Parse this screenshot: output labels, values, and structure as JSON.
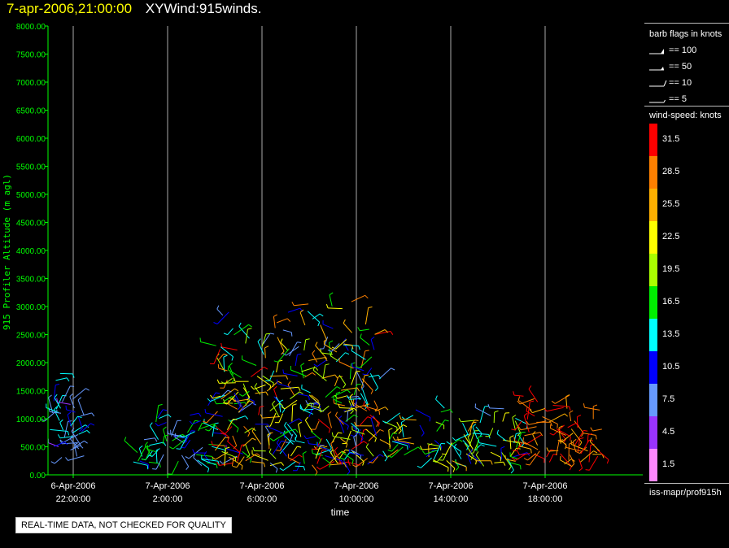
{
  "header": {
    "timestamp": "7-apr-2006,21:00:00",
    "title": "XYWind:915winds."
  },
  "notice": "REAL-TIME DATA, NOT CHECKED FOR QUALITY",
  "legend": {
    "barb_title": "barb flags in knots",
    "barb_flags": [
      {
        "label": "== 100",
        "kind": "pennant"
      },
      {
        "label": "== 50",
        "kind": "pennant-small"
      },
      {
        "label": "== 10",
        "kind": "full"
      },
      {
        "label": "== 5",
        "kind": "half"
      }
    ],
    "speed_title": "wind-speed: knots",
    "speed_bins": [
      {
        "label": "31.5",
        "color": "#ff0000"
      },
      {
        "label": "28.5",
        "color": "#ff8000"
      },
      {
        "label": "25.5",
        "color": "#ffb000"
      },
      {
        "label": "22.5",
        "color": "#ffff00"
      },
      {
        "label": "19.5",
        "color": "#aaff00"
      },
      {
        "label": "16.5",
        "color": "#00ee00"
      },
      {
        "label": "13.5",
        "color": "#00ffff"
      },
      {
        "label": "10.5",
        "color": "#0000ff"
      },
      {
        "label": "7.5",
        "color": "#6699ff"
      },
      {
        "label": "4.5",
        "color": "#9933ff"
      },
      {
        "label": "1.5",
        "color": "#ff88ff"
      }
    ],
    "source": "iss-mapr/prof915h"
  },
  "chart_data": {
    "type": "scatter",
    "title": "XYWind:915winds.",
    "xlabel": "time",
    "ylabel": "915 Profiler Altitude (m agl)",
    "ylim": [
      0,
      8000
    ],
    "yticks": [
      "0.00",
      "500.00",
      "1000.00",
      "1500.00",
      "2000.00",
      "2500.00",
      "3000.00",
      "3500.00",
      "4000.00",
      "4500.00",
      "5000.00",
      "5500.00",
      "6000.00",
      "6500.00",
      "7000.00",
      "7500.00",
      "8000.00"
    ],
    "xticks": [
      {
        "date": "6-Apr-2006",
        "time": "22:00:00"
      },
      {
        "date": "7-Apr-2006",
        "time": "2:00:00"
      },
      {
        "date": "7-Apr-2006",
        "time": "6:00:00"
      },
      {
        "date": "7-Apr-2006",
        "time": "10:00:00"
      },
      {
        "date": "7-Apr-2006",
        "time": "14:00:00"
      },
      {
        "date": "7-Apr-2006",
        "time": "18:00:00"
      }
    ],
    "axis_color": "#00ff00",
    "grid": "vertical at x ticks",
    "wind_regions": [
      {
        "start": "6-Apr-2006 21:00",
        "end": "6-Apr-2006 22:30",
        "alt_min": 300,
        "alt_max": 2200,
        "speed_knots": [
          4,
          14
        ]
      },
      {
        "start": "7-Apr-2006 0:30",
        "end": "7-Apr-2006 4:00",
        "alt_min": 150,
        "alt_max": 1300,
        "speed_knots": [
          8,
          18
        ]
      },
      {
        "start": "7-Apr-2006 4:00",
        "end": "7-Apr-2006 11:00",
        "alt_min": 150,
        "alt_max": 3400,
        "speed_knots": [
          7,
          33
        ]
      },
      {
        "start": "7-Apr-2006 11:00",
        "end": "7-Apr-2006 17:00",
        "alt_min": 150,
        "alt_max": 1300,
        "speed_knots": [
          8,
          26
        ]
      },
      {
        "start": "7-Apr-2006 17:00",
        "end": "7-Apr-2006 20:30",
        "alt_min": 150,
        "alt_max": 1650,
        "speed_knots": [
          25,
          34
        ]
      }
    ]
  }
}
